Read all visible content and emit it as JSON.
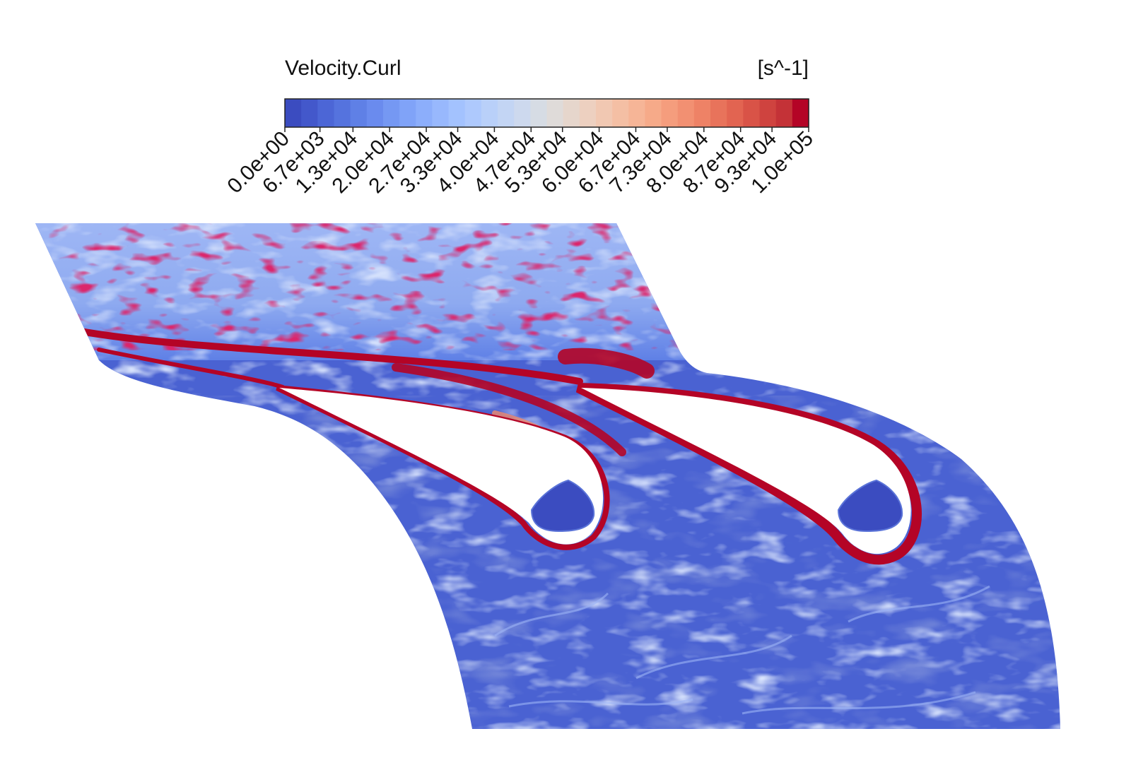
{
  "chart_data": {
    "type": "heatmap",
    "title": "Velocity.Curl",
    "unit": "[s^-1]",
    "colorbar": {
      "min": 0,
      "max": 100000,
      "tick_labels": [
        "0.0e+00",
        "6.7e+03",
        "1.3e+04",
        "2.0e+04",
        "2.7e+04",
        "3.3e+04",
        "4.0e+04",
        "4.7e+04",
        "5.3e+04",
        "6.0e+04",
        "6.7e+04",
        "7.3e+04",
        "8.0e+04",
        "8.7e+04",
        "9.3e+04",
        "1.0e+05"
      ],
      "tick_values": [
        0,
        6700,
        13000,
        20000,
        27000,
        33000,
        40000,
        47000,
        53000,
        60000,
        67000,
        73000,
        80000,
        87000,
        93000,
        100000
      ],
      "colormap": "coolwarm",
      "colors": [
        "#3b4cc0",
        "#4358cb",
        "#4c66d6",
        "#5573de",
        "#5f80e6",
        "#6a8bee",
        "#7598f3",
        "#80a3f8",
        "#8caefb",
        "#98b8fd",
        "#a3c2fe",
        "#aec9fd",
        "#b9d0f9",
        "#c3d5f4",
        "#cdd9ee",
        "#d6dce4",
        "#dfdbd9",
        "#e6d6cc",
        "#edd0c0",
        "#f1c8b2",
        "#f4bfa4",
        "#f6b597",
        "#f6aa89",
        "#f59d7d",
        "#f29072",
        "#ee8266",
        "#e8735b",
        "#e26451",
        "#d95347",
        "#cf433f",
        "#c43237",
        "#b40426"
      ],
      "colors_note": ""
    },
    "field": {
      "domain": "two-blade cascade with cooling holes",
      "dominant_low": "#3b4cc0",
      "dominant_high": "#b40426"
    }
  }
}
